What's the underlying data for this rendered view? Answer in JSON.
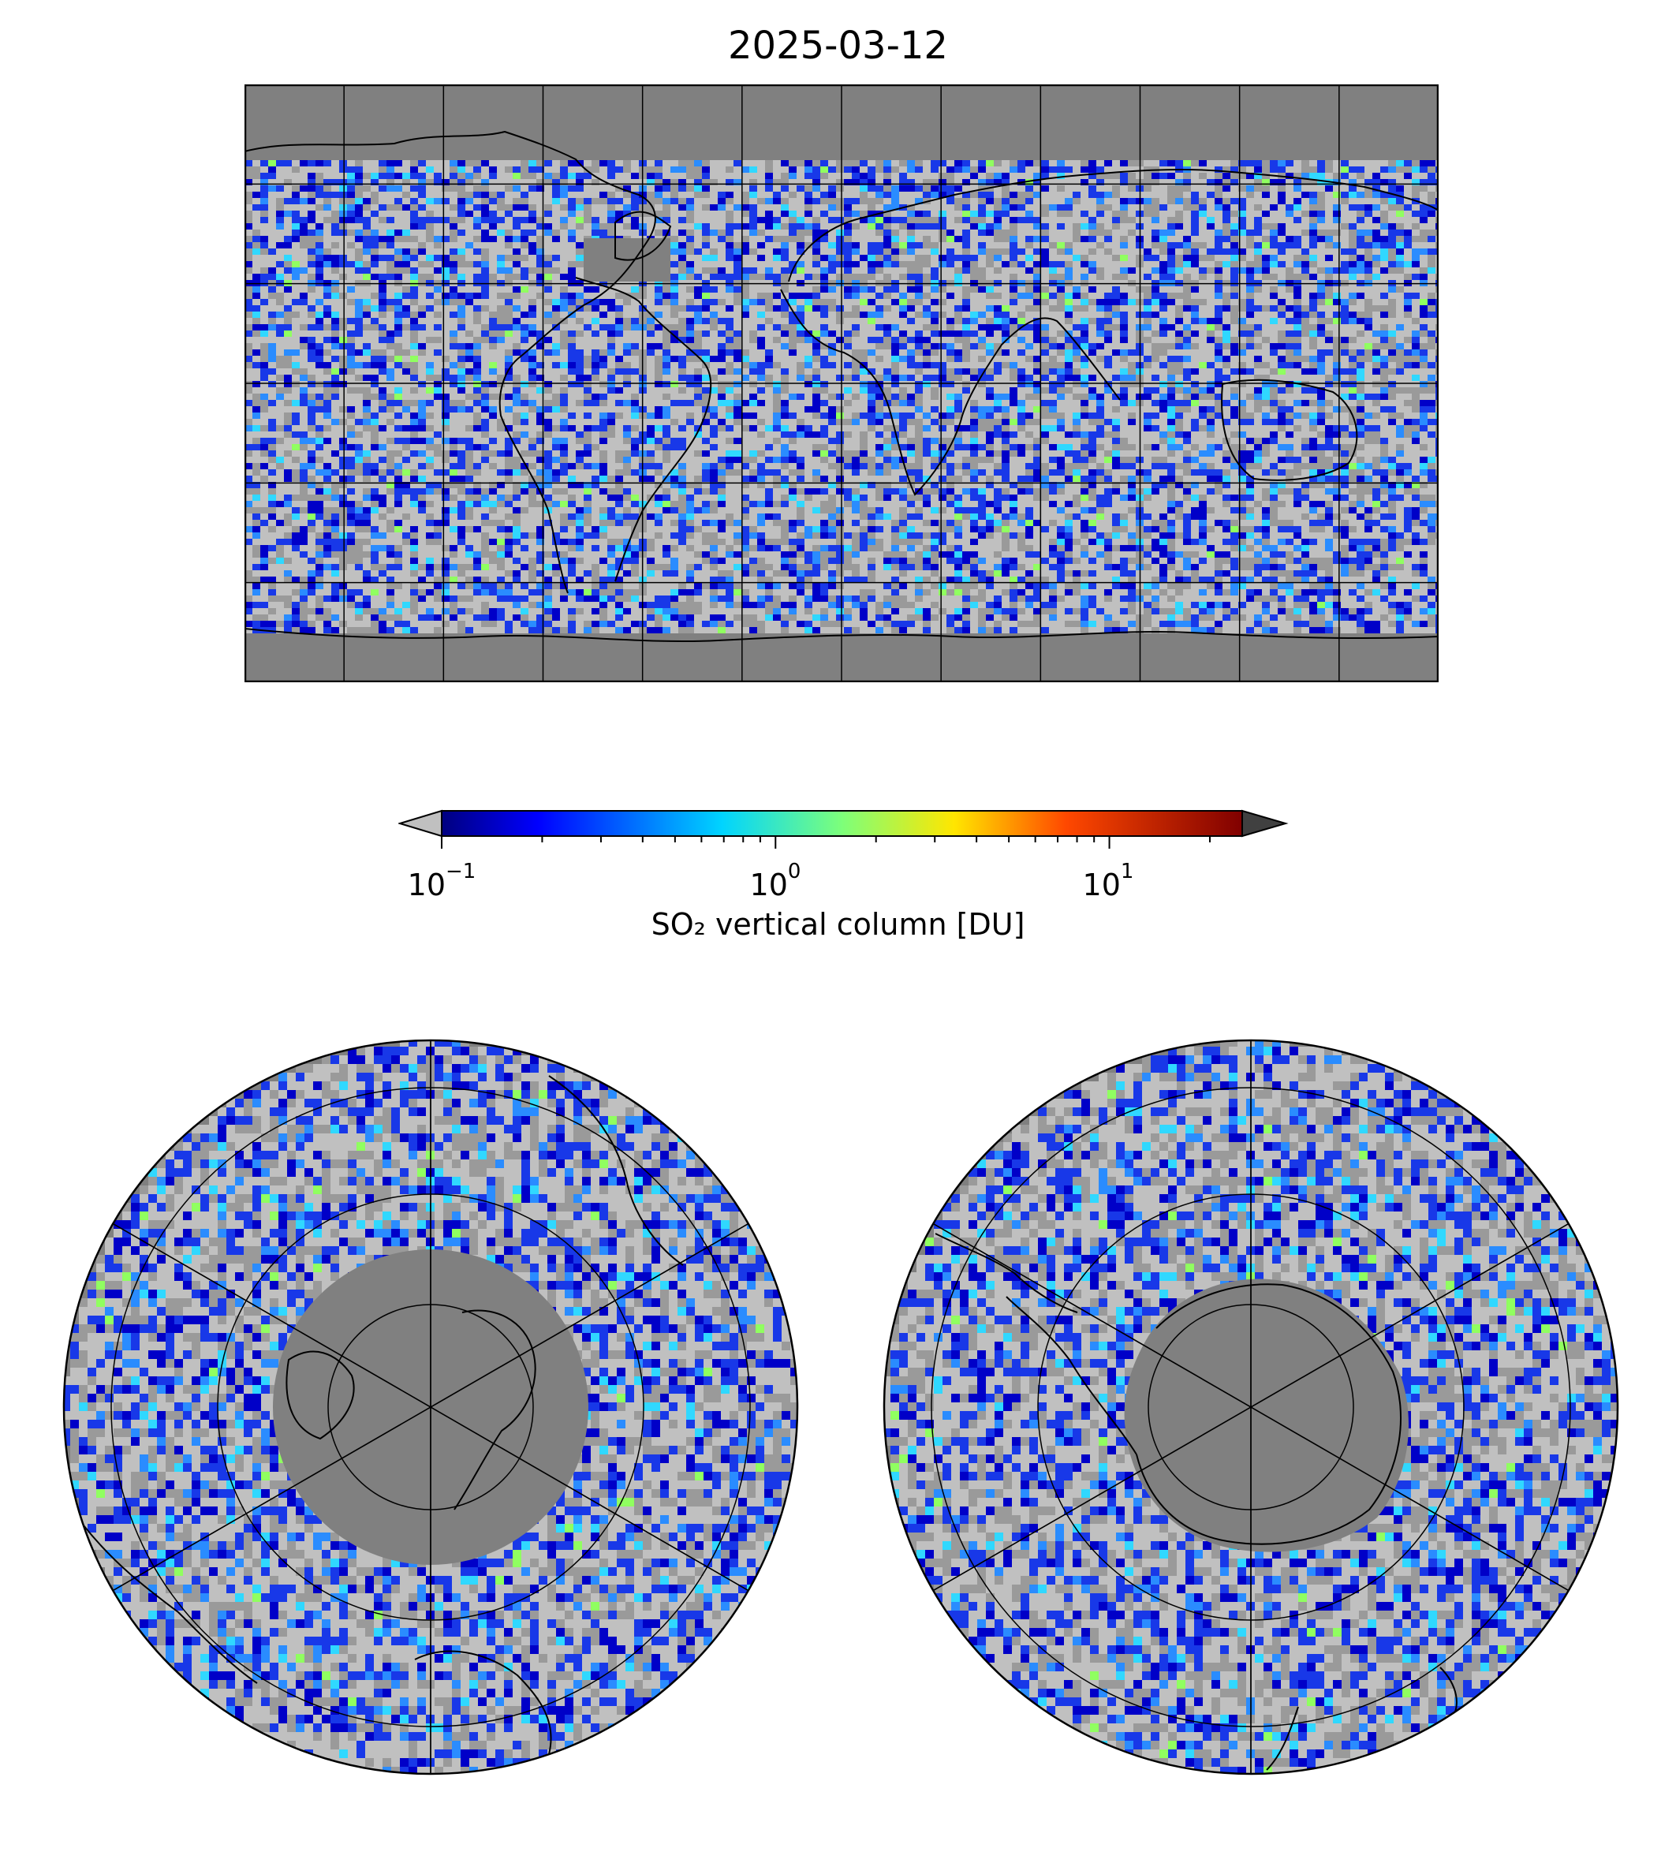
{
  "title": "2025-03-12",
  "colorbar": {
    "label": "SO₂ vertical column [DU]",
    "scale": "log",
    "range": [
      0.1,
      25
    ],
    "extend": "both",
    "colormap": "jet",
    "under_color": "#c0c0c0",
    "over_color": "#404040",
    "ticks": [
      {
        "base": "10",
        "exp": "−1"
      },
      {
        "base": "10",
        "exp": "0"
      },
      {
        "base": "10",
        "exp": "1"
      }
    ]
  },
  "maps": {
    "global": {
      "projection": "plate-carree",
      "background": "#808080",
      "no_data_color": "#808080"
    },
    "north_polar": {
      "projection": "north-polar-stereographic",
      "background": "#808080"
    },
    "south_polar": {
      "projection": "south-polar-stereographic",
      "background": "#808080"
    }
  }
}
